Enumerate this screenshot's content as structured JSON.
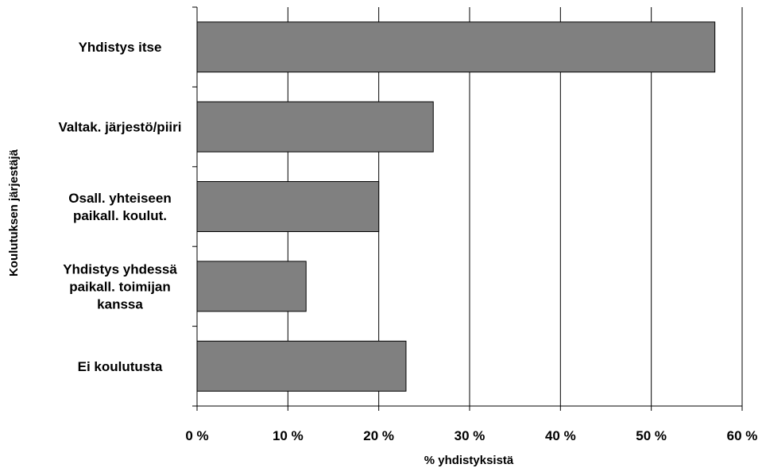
{
  "chart_data": {
    "type": "bar",
    "orientation": "horizontal",
    "categories": [
      [
        "Yhdistys itse"
      ],
      [
        "Valtak. järjestö/piiri"
      ],
      [
        "Osall. yhteiseen",
        "paikall. koulut."
      ],
      [
        "Yhdistys yhdessä",
        "paikall. toimijan",
        "kanssa"
      ],
      [
        "Ei koulutusta"
      ]
    ],
    "values": [
      57,
      26,
      20,
      12,
      23
    ],
    "xlabel": "% yhdistyksistä",
    "ylabel": "Koulutuksen järjestäjä",
    "xlim": [
      0,
      60
    ],
    "xticks": [
      0,
      10,
      20,
      30,
      40,
      50,
      60
    ],
    "tick_suffix": " %",
    "grid": "vertical",
    "colors": {
      "bar_fill": "#808080",
      "bar_stroke": "#000000",
      "grid": "#000000"
    }
  }
}
